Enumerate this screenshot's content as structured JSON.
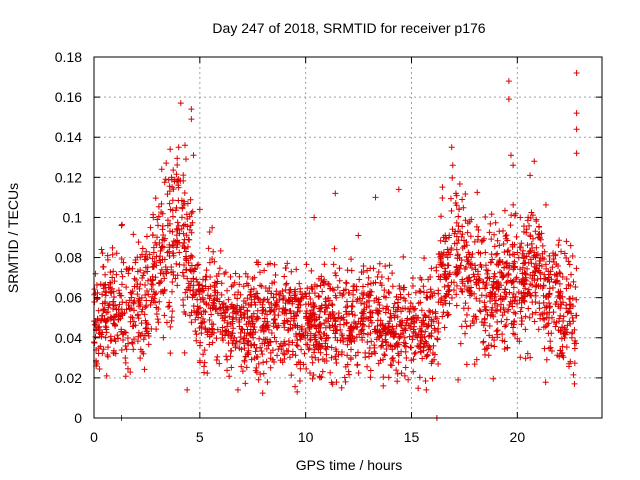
{
  "chart_data": {
    "type": "scatter",
    "title": "Day 247 of 2018, SRMTID for receiver p176",
    "xlabel": "GPS time / hours",
    "ylabel": "SRMTID / TECUs",
    "xlim": [
      0,
      24
    ],
    "ylim": [
      0,
      0.18
    ],
    "xticks": [
      0,
      5,
      10,
      15,
      20
    ],
    "xtick_labels": [
      "0",
      "5",
      "10",
      "15",
      "20"
    ],
    "yticks": [
      0,
      0.02,
      0.04,
      0.06,
      0.08,
      0.1,
      0.12,
      0.14,
      0.16,
      0.18
    ],
    "ytick_labels": [
      "0",
      "0.02",
      "0.04",
      "0.06",
      "0.08",
      "0.1",
      "0.12",
      "0.14",
      "0.16",
      "0.18"
    ],
    "grid": true,
    "marker": "+",
    "series_color": "#dd0000",
    "profile": [
      {
        "t": 0.0,
        "mean": 0.05,
        "spread": 0.012
      },
      {
        "t": 1.0,
        "mean": 0.055,
        "spread": 0.014
      },
      {
        "t": 2.0,
        "mean": 0.056,
        "spread": 0.014
      },
      {
        "t": 2.8,
        "mean": 0.07,
        "spread": 0.016
      },
      {
        "t": 3.5,
        "mean": 0.088,
        "spread": 0.02
      },
      {
        "t": 4.2,
        "mean": 0.092,
        "spread": 0.022
      },
      {
        "t": 4.8,
        "mean": 0.062,
        "spread": 0.016
      },
      {
        "t": 6.0,
        "mean": 0.052,
        "spread": 0.014
      },
      {
        "t": 7.0,
        "mean": 0.046,
        "spread": 0.013
      },
      {
        "t": 9.0,
        "mean": 0.05,
        "spread": 0.014
      },
      {
        "t": 11.0,
        "mean": 0.046,
        "spread": 0.013
      },
      {
        "t": 13.0,
        "mean": 0.052,
        "spread": 0.014
      },
      {
        "t": 15.0,
        "mean": 0.045,
        "spread": 0.012
      },
      {
        "t": 16.0,
        "mean": 0.046,
        "spread": 0.012
      },
      {
        "t": 16.5,
        "mean": 0.072,
        "spread": 0.016
      },
      {
        "t": 17.2,
        "mean": 0.082,
        "spread": 0.018
      },
      {
        "t": 18.5,
        "mean": 0.06,
        "spread": 0.015
      },
      {
        "t": 20.0,
        "mean": 0.072,
        "spread": 0.017
      },
      {
        "t": 21.0,
        "mean": 0.07,
        "spread": 0.016
      },
      {
        "t": 22.0,
        "mean": 0.056,
        "spread": 0.015
      },
      {
        "t": 22.8,
        "mean": 0.052,
        "spread": 0.014
      }
    ],
    "gap_hours": [
      1.6,
      2.0
    ],
    "point_count": 2600,
    "highlighted_points": [
      {
        "x": 3.6,
        "y": 0.134
      },
      {
        "x": 4.0,
        "y": 0.135
      },
      {
        "x": 4.1,
        "y": 0.157
      },
      {
        "x": 4.6,
        "y": 0.154
      },
      {
        "x": 4.6,
        "y": 0.149
      },
      {
        "x": 4.7,
        "y": 0.131
      },
      {
        "x": 3.2,
        "y": 0.124
      },
      {
        "x": 3.8,
        "y": 0.118
      },
      {
        "x": 4.3,
        "y": 0.136
      },
      {
        "x": 11.4,
        "y": 0.112
      },
      {
        "x": 13.3,
        "y": 0.11
      },
      {
        "x": 14.4,
        "y": 0.114
      },
      {
        "x": 16.9,
        "y": 0.135
      },
      {
        "x": 16.95,
        "y": 0.126
      },
      {
        "x": 17.1,
        "y": 0.112
      },
      {
        "x": 19.6,
        "y": 0.168
      },
      {
        "x": 19.6,
        "y": 0.159
      },
      {
        "x": 19.7,
        "y": 0.131
      },
      {
        "x": 19.8,
        "y": 0.126
      },
      {
        "x": 20.8,
        "y": 0.128
      },
      {
        "x": 20.6,
        "y": 0.121
      },
      {
        "x": 22.8,
        "y": 0.172
      },
      {
        "x": 22.8,
        "y": 0.152
      },
      {
        "x": 22.8,
        "y": 0.144
      },
      {
        "x": 22.8,
        "y": 0.132
      },
      {
        "x": 10.4,
        "y": 0.1
      },
      {
        "x": 5.0,
        "y": 0.104
      },
      {
        "x": 2.8,
        "y": 0.1
      },
      {
        "x": 1.3,
        "y": 0.096
      },
      {
        "x": 6.8,
        "y": 0.014
      },
      {
        "x": 4.4,
        "y": 0.014
      },
      {
        "x": 9.6,
        "y": 0.013
      },
      {
        "x": 11.7,
        "y": 0.015
      },
      {
        "x": 15.7,
        "y": 0.014
      },
      {
        "x": 17.2,
        "y": 0.019
      },
      {
        "x": 22.7,
        "y": 0.017
      },
      {
        "x": 0.1,
        "y": 0.026
      },
      {
        "x": 0.6,
        "y": 0.021
      },
      {
        "x": 1.3,
        "y": 0.0
      },
      {
        "x": 16.2,
        "y": 0.0
      }
    ]
  }
}
